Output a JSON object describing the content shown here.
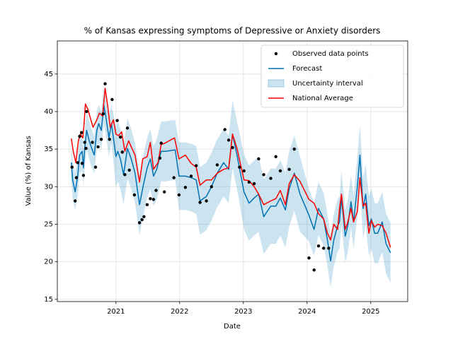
{
  "chart_data": {
    "type": "forecast",
    "title": "% of Kansas expressing symptoms of Depressive or Anxiety disorders",
    "x_label": "Date",
    "y_label": "Value (%) of Kansas",
    "xlim": [
      2020.08,
      2025.58
    ],
    "ylim": [
      14.7,
      49.4
    ],
    "xticks": [
      2021,
      2022,
      2023,
      2024,
      2025
    ],
    "yticks": [
      15,
      20,
      25,
      30,
      35,
      40,
      45
    ],
    "grid": true,
    "legend": "upper right",
    "series": [
      {
        "name": "Observed data points",
        "type": "scatter",
        "color": "#000000",
        "x": [
          2020.31,
          2020.36,
          2020.38,
          2020.4,
          2020.43,
          2020.46,
          2020.47,
          2020.49,
          2020.51,
          2020.53,
          2020.54,
          2020.63,
          2020.68,
          2020.72,
          2020.77,
          2020.8,
          2020.83,
          2020.9,
          2020.94,
          2021.02,
          2021.07,
          2021.1,
          2021.14,
          2021.18,
          2021.21,
          2021.29,
          2021.37,
          2021.41,
          2021.44,
          2021.49,
          2021.54,
          2021.59,
          2021.63,
          2021.69,
          2021.71,
          2021.76,
          2021.91,
          2021.99,
          2022.09,
          2022.18,
          2022.26,
          2022.32,
          2022.42,
          2022.5,
          2022.59,
          2022.71,
          2022.77,
          2022.83,
          2022.94,
          2023.01,
          2023.09,
          2023.17,
          2023.24,
          2023.32,
          2023.43,
          2023.51,
          2023.58,
          2023.72,
          2023.8,
          2024.03,
          2024.11,
          2024.18,
          2024.26,
          2024.34
        ],
        "values": [
          32.6,
          28.1,
          31.2,
          33.2,
          36.7,
          37.2,
          33.1,
          31.5,
          35.9,
          35.1,
          40.0,
          35.9,
          32.6,
          35.3,
          36.3,
          39.7,
          43.7,
          36.3,
          41.6,
          38.8,
          36.6,
          34.6,
          31.6,
          37.8,
          32.2,
          28.9,
          25.2,
          25.6,
          26.0,
          27.6,
          28.4,
          28.3,
          29.5,
          33.8,
          35.8,
          29.3,
          31.2,
          28.9,
          29.9,
          31.4,
          32.8,
          27.9,
          28.1,
          30.0,
          32.9,
          37.6,
          36.2,
          35.2,
          32.6,
          32.1,
          30.6,
          30.4,
          33.7,
          31.6,
          31.1,
          34.0,
          32.1,
          32.3,
          35.0,
          20.5,
          18.9,
          22.1,
          21.8,
          21.8
        ]
      },
      {
        "name": "Forecast",
        "type": "line",
        "color": "#0072B2",
        "x": [
          2020.3,
          2020.32,
          2020.36,
          2020.4,
          2020.43,
          2020.47,
          2020.49,
          2020.51,
          2020.54,
          2020.58,
          2020.62,
          2020.66,
          2020.7,
          2020.73,
          2020.77,
          2020.81,
          2020.84,
          2020.89,
          2020.93,
          2021.0,
          2021.03,
          2021.07,
          2021.12,
          2021.18,
          2021.24,
          2021.3,
          2021.37,
          2021.43,
          2021.49,
          2021.54,
          2021.59,
          2021.64,
          2021.71,
          2021.78,
          2021.93,
          2021.99,
          2022.09,
          2022.18,
          2022.26,
          2022.32,
          2022.42,
          2022.5,
          2022.59,
          2022.69,
          2022.77,
          2022.83,
          2022.9,
          2023.01,
          2023.09,
          2023.17,
          2023.24,
          2023.32,
          2023.43,
          2023.51,
          2023.58,
          2023.66,
          2023.72,
          2023.8,
          2023.89,
          2024.03,
          2024.11,
          2024.18,
          2024.26,
          2024.32,
          2024.37,
          2024.42,
          2024.48,
          2024.51,
          2024.54,
          2024.6,
          2024.64,
          2024.69,
          2024.73,
          2024.79,
          2024.83,
          2024.88,
          2024.92,
          2024.97,
          2025.01,
          2025.06,
          2025.11,
          2025.18,
          2025.24,
          2025.31
        ],
        "values": [
          33.2,
          30.9,
          29.3,
          31.4,
          34.2,
          34.7,
          32.5,
          35.1,
          37.5,
          36.1,
          35.1,
          34.2,
          37.5,
          38.4,
          37.5,
          40.8,
          39.4,
          36.5,
          38.4,
          34.0,
          34.7,
          33.7,
          31.6,
          35.1,
          33.7,
          31.8,
          27.6,
          30.2,
          32.5,
          33.7,
          31.4,
          32.3,
          34.7,
          34.7,
          34.9,
          31.4,
          31.4,
          31.2,
          30.9,
          28.1,
          28.7,
          30.0,
          31.8,
          33.2,
          32.3,
          37.0,
          34.2,
          29.3,
          27.8,
          28.5,
          29.0,
          26.0,
          27.4,
          27.4,
          28.5,
          26.9,
          29.7,
          31.8,
          29.0,
          26.2,
          24.3,
          27.1,
          25.7,
          22.9,
          20.1,
          22.9,
          24.8,
          25.3,
          28.5,
          23.4,
          24.8,
          28.0,
          25.3,
          30.0,
          34.2,
          27.1,
          29.0,
          24.8,
          25.7,
          23.8,
          23.8,
          25.3,
          22.4,
          21.2
        ]
      },
      {
        "name": "Uncertainty interval",
        "type": "band",
        "color": "#0072B2",
        "x": [
          2020.3,
          2020.32,
          2020.36,
          2020.4,
          2020.43,
          2020.47,
          2020.49,
          2020.51,
          2020.54,
          2020.58,
          2020.62,
          2020.66,
          2020.7,
          2020.73,
          2020.77,
          2020.81,
          2020.84,
          2020.89,
          2020.93,
          2021.0,
          2021.03,
          2021.07,
          2021.12,
          2021.18,
          2021.24,
          2021.3,
          2021.37,
          2021.43,
          2021.49,
          2021.54,
          2021.59,
          2021.64,
          2021.71,
          2021.78,
          2021.93,
          2021.99,
          2022.09,
          2022.18,
          2022.26,
          2022.32,
          2022.42,
          2022.5,
          2022.59,
          2022.69,
          2022.77,
          2022.83,
          2022.9,
          2023.01,
          2023.09,
          2023.17,
          2023.24,
          2023.32,
          2023.43,
          2023.51,
          2023.58,
          2023.66,
          2023.72,
          2023.8,
          2023.89,
          2024.03,
          2024.11,
          2024.18,
          2024.26,
          2024.32,
          2024.37,
          2024.42,
          2024.48,
          2024.51,
          2024.54,
          2024.6,
          2024.64,
          2024.69,
          2024.73,
          2024.79,
          2024.83,
          2024.88,
          2024.92,
          2024.97,
          2025.01,
          2025.06,
          2025.11,
          2025.18,
          2025.24,
          2025.31
        ],
        "lower": [
          30.7,
          28.4,
          26.8,
          28.9,
          31.7,
          32.2,
          30.0,
          32.6,
          35.0,
          33.6,
          32.6,
          31.7,
          35.0,
          35.9,
          35.0,
          38.3,
          36.9,
          34.0,
          35.9,
          30.0,
          30.7,
          29.7,
          27.6,
          31.1,
          29.7,
          27.8,
          23.6,
          26.2,
          28.5,
          29.7,
          27.4,
          28.3,
          30.7,
          30.7,
          30.9,
          26.9,
          26.9,
          26.7,
          26.4,
          23.6,
          24.2,
          25.5,
          27.3,
          28.7,
          27.8,
          32.5,
          29.7,
          24.3,
          22.8,
          23.5,
          24.0,
          21.0,
          22.4,
          22.4,
          23.5,
          21.9,
          24.7,
          26.8,
          24.0,
          22.7,
          20.8,
          23.6,
          22.2,
          19.4,
          16.6,
          19.4,
          21.3,
          21.8,
          25.0,
          19.9,
          21.3,
          24.5,
          21.8,
          26.0,
          30.2,
          23.1,
          25.0,
          20.8,
          21.7,
          19.8,
          19.8,
          21.3,
          18.4,
          17.2
        ],
        "upper": [
          35.7,
          33.4,
          31.8,
          33.9,
          36.7,
          37.2,
          35.0,
          37.6,
          40.0,
          38.6,
          37.6,
          36.7,
          40.0,
          40.9,
          40.0,
          43.3,
          41.9,
          39.0,
          40.9,
          38.0,
          38.7,
          37.7,
          35.6,
          39.1,
          37.7,
          35.8,
          31.6,
          34.2,
          36.5,
          37.7,
          35.4,
          36.3,
          38.7,
          38.7,
          38.9,
          35.9,
          35.9,
          35.7,
          35.4,
          32.6,
          33.2,
          34.5,
          36.3,
          37.7,
          36.8,
          41.5,
          38.7,
          34.3,
          32.8,
          33.5,
          34.0,
          31.0,
          32.4,
          32.4,
          33.5,
          31.9,
          34.7,
          36.8,
          34.0,
          29.7,
          27.8,
          30.6,
          29.2,
          26.4,
          23.6,
          26.4,
          28.3,
          28.8,
          32.0,
          26.9,
          28.3,
          31.5,
          28.8,
          34.0,
          38.2,
          31.1,
          33.0,
          28.8,
          29.7,
          27.8,
          27.8,
          29.3,
          26.4,
          25.2
        ]
      },
      {
        "name": "National Average",
        "type": "line",
        "color": "#ff0000",
        "x": [
          2020.3,
          2020.33,
          2020.37,
          2020.41,
          2020.44,
          2020.48,
          2020.5,
          2020.52,
          2020.56,
          2020.6,
          2020.64,
          2020.7,
          2020.74,
          2020.79,
          2020.83,
          2020.87,
          2020.91,
          2020.96,
          2021.0,
          2021.04,
          2021.09,
          2021.14,
          2021.2,
          2021.24,
          2021.3,
          2021.37,
          2021.42,
          2021.49,
          2021.54,
          2021.59,
          2021.66,
          2021.71,
          2021.77,
          2021.92,
          2021.99,
          2022.09,
          2022.18,
          2022.26,
          2022.32,
          2022.42,
          2022.5,
          2022.59,
          2022.69,
          2022.77,
          2022.83,
          2022.9,
          2023.01,
          2023.09,
          2023.17,
          2023.24,
          2023.32,
          2023.43,
          2023.51,
          2023.58,
          2023.66,
          2023.72,
          2023.8,
          2023.89,
          2024.03,
          2024.11,
          2024.18,
          2024.26,
          2024.32,
          2024.37,
          2024.42,
          2024.48,
          2024.51,
          2024.54,
          2024.6,
          2024.64,
          2024.69,
          2024.73,
          2024.79,
          2024.83,
          2024.88,
          2024.92,
          2024.97,
          2025.01,
          2025.06,
          2025.11,
          2025.18,
          2025.24,
          2025.31
        ],
        "values": [
          36.4,
          34.7,
          33.2,
          36.1,
          37.0,
          36.5,
          38.4,
          41.0,
          40.3,
          39.1,
          37.9,
          38.9,
          39.8,
          39.4,
          43.1,
          40.8,
          37.9,
          38.9,
          37.0,
          36.8,
          37.3,
          34.7,
          36.1,
          35.3,
          34.2,
          30.6,
          33.7,
          34.0,
          35.9,
          32.3,
          33.2,
          35.6,
          35.8,
          36.5,
          33.7,
          34.2,
          33.1,
          32.6,
          30.2,
          30.9,
          30.9,
          31.8,
          32.3,
          32.5,
          37.0,
          35.1,
          30.9,
          30.8,
          30.0,
          29.0,
          27.6,
          28.1,
          28.4,
          29.5,
          27.6,
          30.4,
          31.6,
          30.7,
          28.3,
          27.8,
          26.4,
          25.7,
          23.8,
          22.9,
          25.0,
          24.3,
          27.1,
          29.0,
          24.3,
          25.3,
          27.1,
          25.3,
          26.7,
          31.2,
          27.4,
          27.8,
          23.8,
          25.5,
          24.6,
          25.0,
          24.8,
          23.8,
          21.9
        ]
      }
    ]
  }
}
